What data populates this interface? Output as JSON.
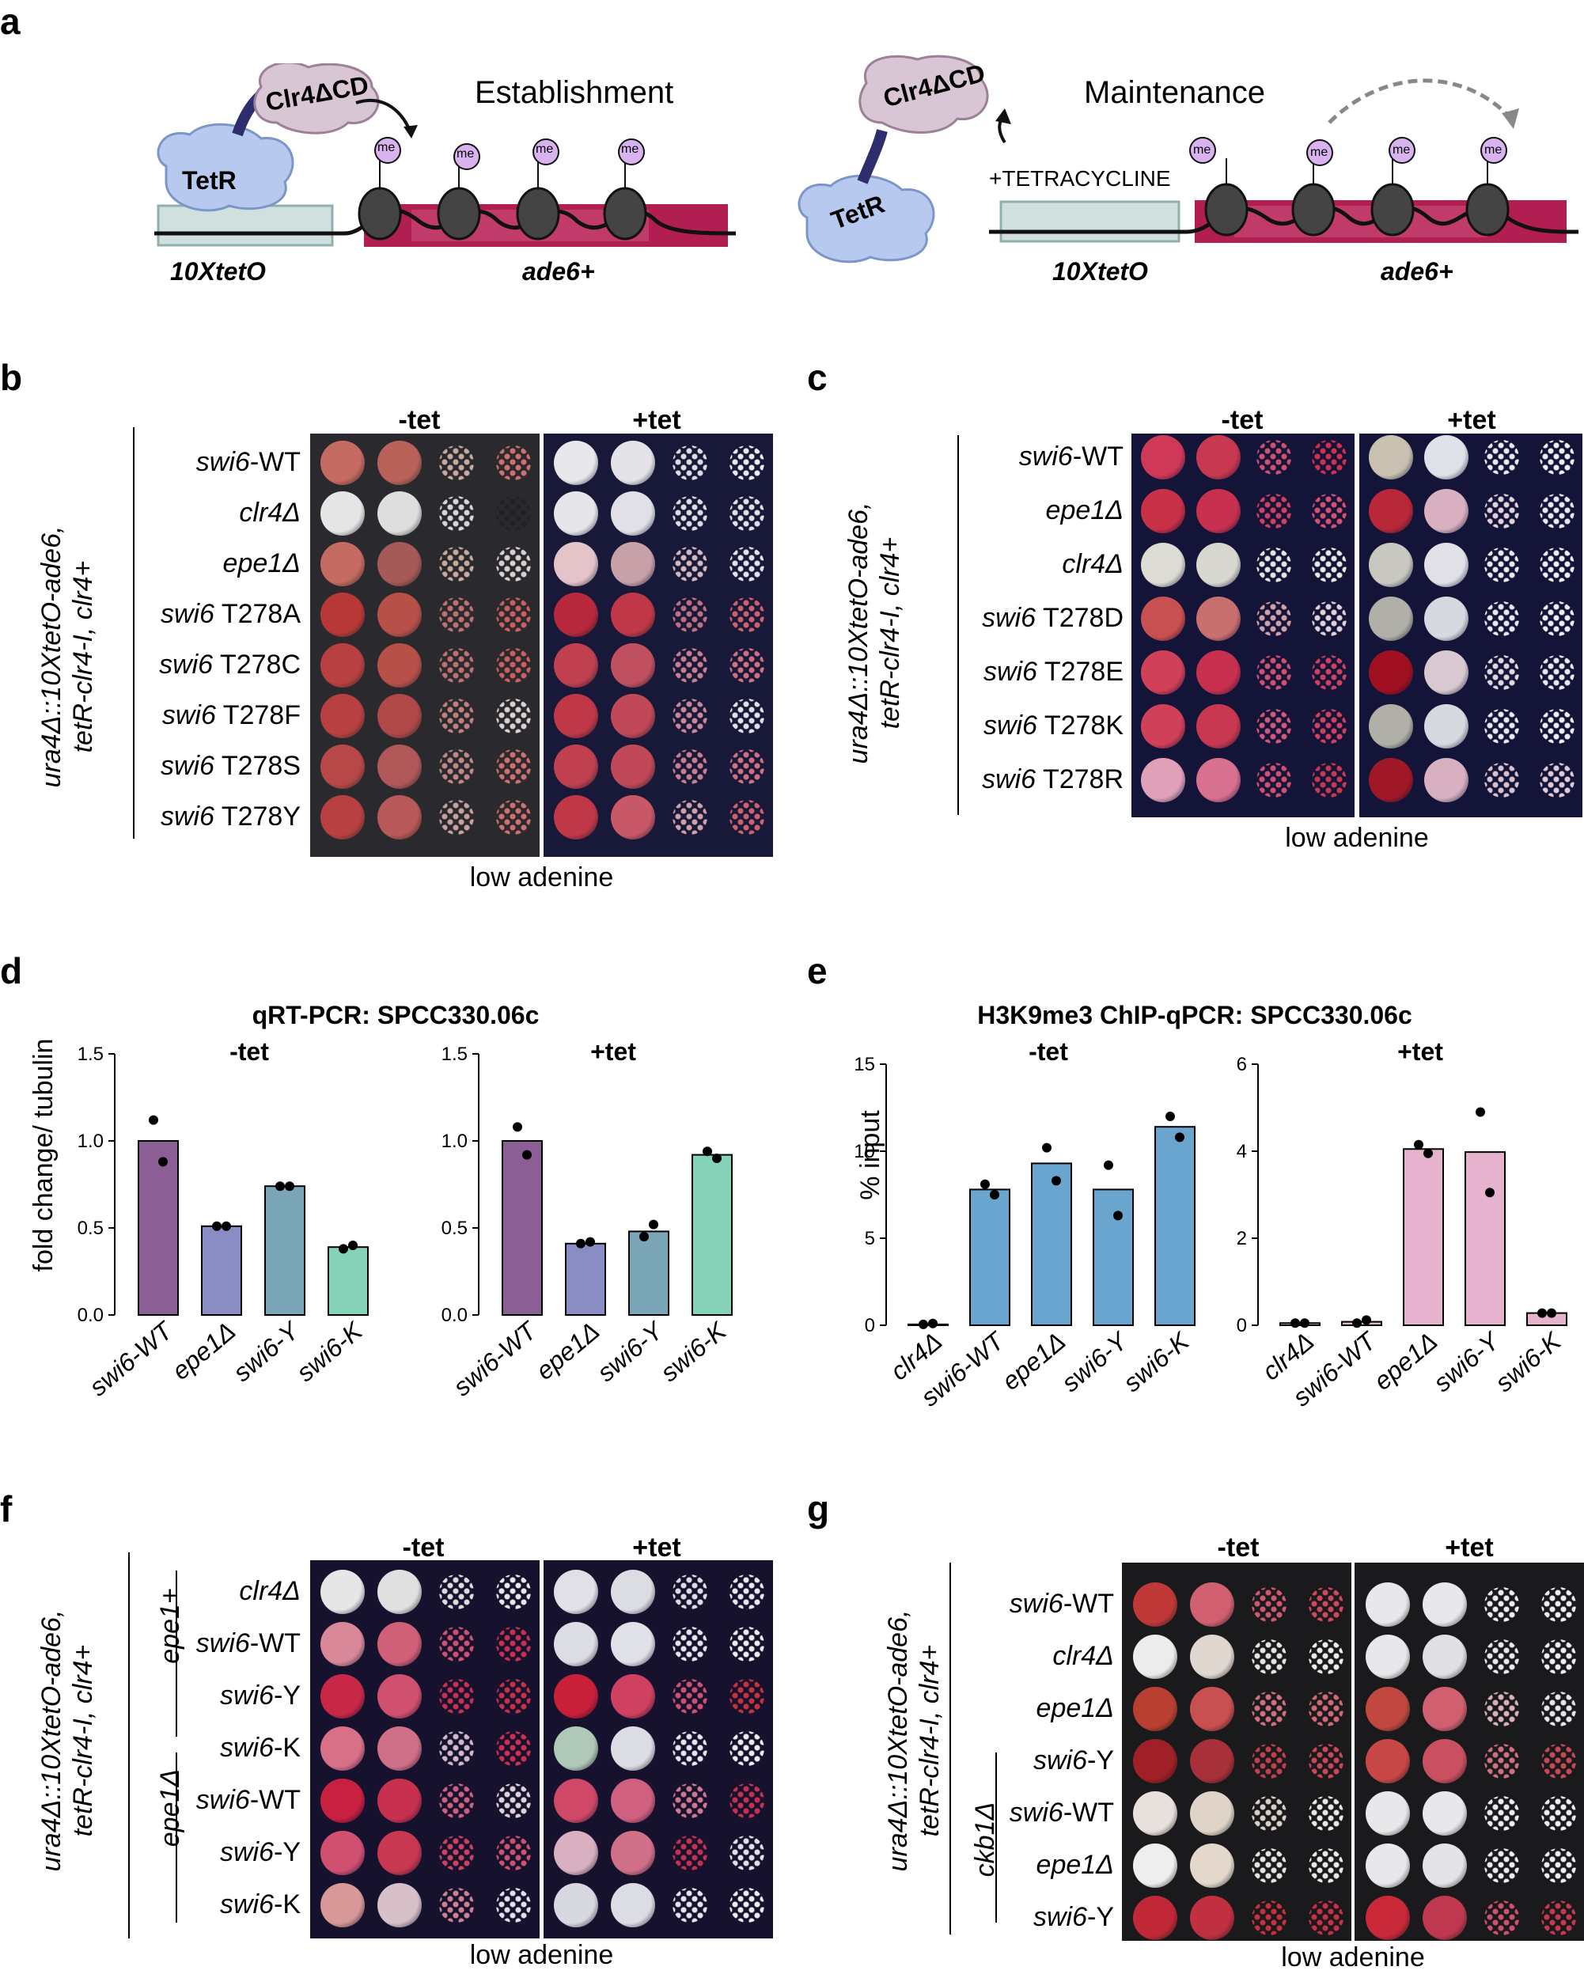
{
  "panels": {
    "a": {
      "label": "a",
      "establishment": {
        "title": "Establishment",
        "protein_top": "Clr4ΔCD",
        "protein_bottom": "TetR",
        "mark": "me",
        "region1": "10XtetO",
        "region2": "ade6+"
      },
      "maintenance": {
        "title": "Maintenance",
        "protein_top": "Clr4ΔCD",
        "protein_bottom": "TetR",
        "treatment": "+TETRACYCLINE",
        "mark": "me",
        "region1": "10XtetO",
        "region2": "ade6+"
      }
    },
    "b": {
      "label": "b",
      "genotype": "ura4Δ::10XtetO-ade6,\ntetR-clr4-I, clr4+",
      "cond_minus": "-tet",
      "cond_plus": "+tet",
      "medium": "low adenine",
      "rows": [
        {
          "gene": "swi6",
          "suffix": "-WT",
          "colors": [
            "#c46a60",
            "#b8625a",
            "#c8a8a0",
            "#d07070"
          ],
          "plus": [
            "#e8e8ea",
            "#e4e4e8",
            "#dcdce4",
            "#ececf0"
          ]
        },
        {
          "gene": "clr4Δ",
          "suffix": "",
          "colors": [
            "#e6e6e6",
            "#dedede",
            "#d6d6d6",
            "#222222"
          ],
          "plus": [
            "#e6e6ea",
            "#e0e0e6",
            "#dcdce4",
            "#e0e0e6"
          ]
        },
        {
          "gene": "epe1Δ",
          "suffix": "",
          "colors": [
            "#c46a60",
            "#a65a58",
            "#c9a8a0",
            "#d8d0d0"
          ],
          "plus": [
            "#e4c4c8",
            "#c8a0a8",
            "#d4b8c0",
            "#e2e2ea"
          ]
        },
        {
          "gene": "swi6",
          "suffix": " T278A",
          "colors": [
            "#b83838",
            "#b8504a",
            "#c07070",
            "#cc6060"
          ],
          "plus": [
            "#b8283c",
            "#c03848",
            "#c07080",
            "#d06070"
          ]
        },
        {
          "gene": "swi6",
          "suffix": " T278C",
          "colors": [
            "#b84040",
            "#b8504a",
            "#c07070",
            "#cc6060"
          ],
          "plus": [
            "#c04050",
            "#c05060",
            "#c88090",
            "#d07080"
          ]
        },
        {
          "gene": "swi6",
          "suffix": " T278F",
          "colors": [
            "#b84040",
            "#b04848",
            "#c08080",
            "#dcd0d0"
          ],
          "plus": [
            "#c03848",
            "#c04858",
            "#c88898",
            "#e0e0e8"
          ]
        },
        {
          "gene": "swi6",
          "suffix": " T278S",
          "colors": [
            "#b84848",
            "#b05858",
            "#c08888",
            "#d07070"
          ],
          "plus": [
            "#c04050",
            "#c04858",
            "#c88090",
            "#d07080"
          ]
        },
        {
          "gene": "swi6",
          "suffix": " T278Y",
          "colors": [
            "#b84040",
            "#b85858",
            "#c8a0a0",
            "#d07070"
          ],
          "plus": [
            "#c03848",
            "#c85868",
            "#d0a0a8",
            "#d06070"
          ]
        }
      ]
    },
    "c": {
      "label": "c",
      "genotype": "ura4Δ::10XtetO-ade6,\ntetR-clr4-I, clr4+",
      "cond_minus": "-tet",
      "cond_plus": "+tet",
      "medium": "low adenine",
      "rows": [
        {
          "gene": "swi6",
          "suffix": "-WT",
          "colors": [
            "#d03858",
            "#c83850",
            "#d05070",
            "#d03050"
          ],
          "plus": [
            "#c8c0b0",
            "#e0e0e8",
            "#e8e8f0",
            "#eeeef2"
          ]
        },
        {
          "gene": "epe1Δ",
          "suffix": "",
          "colors": [
            "#c83048",
            "#c83050",
            "#d04060",
            "#d85070"
          ],
          "plus": [
            "#b82838",
            "#d8b0c0",
            "#e0d0d8",
            "#e8e8f0"
          ]
        },
        {
          "gene": "clr4Δ",
          "suffix": "",
          "colors": [
            "#dcdcd4",
            "#d8d8d0",
            "#e4e4dc",
            "#e8e8e0"
          ],
          "plus": [
            "#c8c8c0",
            "#e0e0e6",
            "#e8e8ee",
            "#eeeef2"
          ]
        },
        {
          "gene": "swi6",
          "suffix": " T278D",
          "colors": [
            "#c85050",
            "#c87070",
            "#d0a0a8",
            "#e0d0d8"
          ],
          "plus": [
            "#b0b0a8",
            "#d8d8e0",
            "#e8e8f0",
            "#eeeef2"
          ]
        },
        {
          "gene": "swi6",
          "suffix": " T278E",
          "colors": [
            "#d04058",
            "#c83050",
            "#d05070",
            "#d04060"
          ],
          "plus": [
            "#a01020",
            "#d8c8d0",
            "#e0d8e0",
            "#e8e8f0"
          ]
        },
        {
          "gene": "swi6",
          "suffix": " T278K",
          "colors": [
            "#d04058",
            "#c83850",
            "#d05878",
            "#d04060"
          ],
          "plus": [
            "#b0b0a8",
            "#d8d8e0",
            "#e8e8f0",
            "#eeeef2"
          ]
        },
        {
          "gene": "swi6",
          "suffix": " T278R",
          "colors": [
            "#e0a0b8",
            "#d87090",
            "#d05070",
            "#c83850"
          ],
          "plus": [
            "#a01828",
            "#d8b0c0",
            "#d8c0d0",
            "#e0c8d8"
          ]
        }
      ]
    },
    "d": {
      "label": "d",
      "title": "qRT-PCR: SPCC330.06c",
      "ylabel": "fold change/ tubulin"
    },
    "e": {
      "label": "e",
      "title": "H3K9me3 ChIP-qPCR: SPCC330.06c",
      "ylabel": "% input"
    },
    "f": {
      "label": "f",
      "genotype": "ura4Δ::10XtetO-ade6,\ntetR-clr4-I, clr4+",
      "cond_minus": "-tet",
      "cond_plus": "+tet",
      "medium": "low adenine",
      "group1": "epe1+",
      "group2": "epe1Δ",
      "rows": [
        {
          "gene": "clr4Δ",
          "suffix": "",
          "colors": [
            "#e6e6e6",
            "#e0e0e0",
            "#dcdcdc",
            "#e8e8e8"
          ],
          "plus": [
            "#e0e0e6",
            "#dcdce4",
            "#dcdce4",
            "#e8e8ee"
          ]
        },
        {
          "gene": "swi6",
          "suffix": "-WT",
          "colors": [
            "#d88898",
            "#d06078",
            "#d05070",
            "#c83050"
          ],
          "plus": [
            "#dcdce4",
            "#e0e0e8",
            "#e4e4ec",
            "#ececf0"
          ]
        },
        {
          "gene": "swi6",
          "suffix": "-Y",
          "colors": [
            "#c82848",
            "#d05070",
            "#c83050",
            "#c83048"
          ],
          "plus": [
            "#c82038",
            "#d04060",
            "#d05070",
            "#c83040"
          ]
        },
        {
          "gene": "swi6",
          "suffix": "-K",
          "colors": [
            "#d87088",
            "#d07088",
            "#d0b8c8",
            "#d03050"
          ],
          "plus": [
            "#b0c8b8",
            "#dcdce4",
            "#e4e4ec",
            "#ececf0"
          ]
        },
        {
          "gene": "swi6",
          "suffix": "-WT",
          "colors": [
            "#c82040",
            "#c83050",
            "#d06080",
            "#e0d0d8"
          ],
          "plus": [
            "#d04868",
            "#d06080",
            "#d07890",
            "#c83050"
          ]
        },
        {
          "gene": "swi6",
          "suffix": "-Y",
          "colors": [
            "#d05070",
            "#c83850",
            "#d04060",
            "#d05070"
          ],
          "plus": [
            "#d8b0c0",
            "#d07088",
            "#c83050",
            "#e0e0e8"
          ]
        },
        {
          "gene": "swi6",
          "suffix": "-K",
          "colors": [
            "#d89898",
            "#d8c0c8",
            "#d08090",
            "#e0e0e8"
          ],
          "plus": [
            "#d8d8e0",
            "#dcdce4",
            "#e4e4ec",
            "#ececf0"
          ]
        }
      ]
    },
    "g": {
      "label": "g",
      "genotype": "ura4Δ::10XtetO-ade6,\ntetR-clr4-I, clr4+",
      "cond_minus": "-tet",
      "cond_plus": "+tet",
      "medium": "low adenine",
      "group": "ckb1Δ",
      "rows": [
        {
          "gene": "swi6",
          "suffix": "-WT",
          "colors": [
            "#c03838",
            "#d06070",
            "#d05870",
            "#d04860"
          ],
          "plus": [
            "#e8e8ea",
            "#e8e8ec",
            "#ececf0",
            "#eeeef2"
          ]
        },
        {
          "gene": "clr4Δ",
          "suffix": "",
          "colors": [
            "#ececec",
            "#e0d8d0",
            "#e4e4e4",
            "#ececec"
          ],
          "plus": [
            "#e8e8ea",
            "#e0e0e4",
            "#e8e8ec",
            "#eeeef2"
          ]
        },
        {
          "gene": "epe1Δ",
          "suffix": "",
          "colors": [
            "#b84030",
            "#c85050",
            "#d07080",
            "#d06878"
          ],
          "plus": [
            "#c04840",
            "#d06070",
            "#d8b0b8",
            "#e4e4ea"
          ]
        },
        {
          "gene": "swi6",
          "suffix": "-Y",
          "colors": [
            "#a02028",
            "#a83038",
            "#c04050",
            "#c84858"
          ],
          "plus": [
            "#c84848",
            "#c85060",
            "#d07080",
            "#c84858"
          ]
        },
        {
          "gene": "swi6",
          "suffix": "-WT",
          "colors": [
            "#e8e0dc",
            "#e0d4c8",
            "#d8d0c8",
            "#e8e8e8"
          ],
          "plus": [
            "#e8e8ea",
            "#e8e8ec",
            "#ececf0",
            "#eeeef2"
          ]
        },
        {
          "gene": "epe1Δ",
          "suffix": "",
          "colors": [
            "#eeeeee",
            "#e4d8cc",
            "#e4e4e4",
            "#e8e8e8"
          ],
          "plus": [
            "#e8e8ea",
            "#e4e4e8",
            "#ececf0",
            "#eeeef2"
          ]
        },
        {
          "gene": "swi6",
          "suffix": "-Y",
          "colors": [
            "#c02838",
            "#c03040",
            "#c83040",
            "#c83048"
          ],
          "plus": [
            "#c82838",
            "#c03850",
            "#d05070",
            "#c83850"
          ]
        }
      ]
    }
  },
  "chart_data": [
    {
      "type": "bar",
      "panel": "d",
      "title": "qRT-PCR: SPCC330.06c",
      "subtitle": "-tet",
      "ylabel": "fold change/ tubulin",
      "ylim": [
        0,
        1.5
      ],
      "yticks": [
        "0.0",
        "0.5",
        "1.0",
        "1.5"
      ],
      "categories": [
        "swi6-WT",
        "epe1Δ",
        "swi6-Y",
        "swi6-K"
      ],
      "values": [
        1.0,
        0.51,
        0.74,
        0.39
      ],
      "points": [
        [
          1.12,
          0.88
        ],
        [
          0.51,
          0.51
        ],
        [
          0.74,
          0.74
        ],
        [
          0.38,
          0.4
        ]
      ],
      "colors": [
        "#8b5e96",
        "#8a8dc3",
        "#7ba6b7",
        "#85d2b8"
      ]
    },
    {
      "type": "bar",
      "panel": "d",
      "subtitle": "+tet",
      "ylabel": "",
      "ylim": [
        0,
        1.5
      ],
      "yticks": [
        "0.0",
        "0.5",
        "1.0",
        "1.5"
      ],
      "categories": [
        "swi6-WT",
        "epe1Δ",
        "swi6-Y",
        "swi6-K"
      ],
      "values": [
        1.0,
        0.41,
        0.48,
        0.92
      ],
      "points": [
        [
          1.08,
          0.92
        ],
        [
          0.41,
          0.42
        ],
        [
          0.45,
          0.52
        ],
        [
          0.94,
          0.9
        ]
      ],
      "colors": [
        "#8b5e96",
        "#8a8dc3",
        "#7ba6b7",
        "#85d2b8"
      ]
    },
    {
      "type": "bar",
      "panel": "e",
      "title": "H3K9me3 ChIP-qPCR: SPCC330.06c",
      "subtitle": "-tet",
      "ylabel": "% input",
      "ylim": [
        0,
        15
      ],
      "yticks": [
        "0",
        "5",
        "10",
        "15"
      ],
      "categories": [
        "clr4Δ",
        "swi6-WT",
        "epe1Δ",
        "swi6-Y",
        "swi6-K"
      ],
      "values": [
        0.05,
        7.8,
        9.3,
        7.8,
        11.4
      ],
      "points": [
        [
          0.05,
          0.1
        ],
        [
          8.1,
          7.5
        ],
        [
          10.2,
          8.3
        ],
        [
          9.2,
          6.3
        ],
        [
          12.0,
          10.8
        ]
      ],
      "colors": [
        "#6aa5cf",
        "#6aa5cf",
        "#6aa5cf",
        "#6aa5cf",
        "#6aa5cf"
      ]
    },
    {
      "type": "bar",
      "panel": "e",
      "subtitle": "+tet",
      "ylabel": "",
      "ylim": [
        0,
        6
      ],
      "yticks": [
        "0",
        "2",
        "4",
        "6"
      ],
      "categories": [
        "clr4Δ",
        "swi6-WT",
        "epe1Δ",
        "swi6-Y",
        "swi6-K"
      ],
      "values": [
        0.05,
        0.08,
        4.05,
        3.98,
        0.28
      ],
      "points": [
        [
          0.05,
          0.05
        ],
        [
          0.05,
          0.12
        ],
        [
          4.15,
          3.95
        ],
        [
          4.9,
          3.05
        ],
        [
          0.28,
          0.28
        ]
      ],
      "colors": [
        "#e6b3cf",
        "#e6b3cf",
        "#e6b3cf",
        "#e6b3cf",
        "#e6b3cf"
      ]
    }
  ]
}
